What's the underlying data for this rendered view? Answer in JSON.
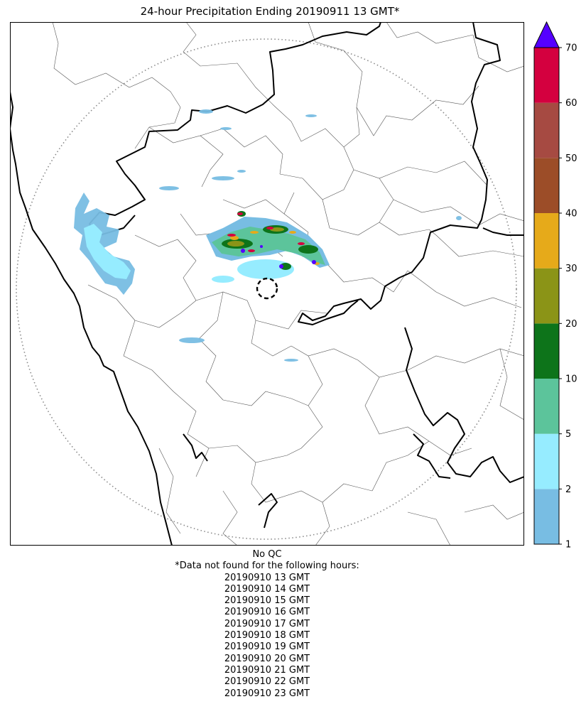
{
  "title": "24-hour Precipitation Ending 20190911 13 GMT*",
  "colorbar": {
    "tick_labels": [
      "1",
      "2",
      "5",
      "10",
      "20",
      "30",
      "40",
      "50",
      "60",
      "70"
    ],
    "bins": [
      {
        "from": 1,
        "to": 2,
        "color": "#78bde3"
      },
      {
        "from": 2,
        "to": 5,
        "color": "#96ecff"
      },
      {
        "from": 5,
        "to": 10,
        "color": "#5cc49b"
      },
      {
        "from": 10,
        "to": 20,
        "color": "#0d741a"
      },
      {
        "from": 20,
        "to": 30,
        "color": "#8b9417"
      },
      {
        "from": 30,
        "to": 40,
        "color": "#e6aa1a"
      },
      {
        "from": 40,
        "to": 50,
        "color": "#9c4d28"
      },
      {
        "from": 50,
        "to": 60,
        "color": "#a64a42"
      },
      {
        "from": 60,
        "to": 70,
        "color": "#d4003f"
      }
    ],
    "overflow_color": "#5500ff"
  },
  "notes": {
    "qc": "No QC",
    "missing_header": "*Data not found for the following hours:",
    "missing_hours": [
      "20190910 13 GMT",
      "20190910 14 GMT",
      "20190910 15 GMT",
      "20190910 16 GMT",
      "20190910 17 GMT",
      "20190910 18 GMT",
      "20190910 19 GMT",
      "20190910 20 GMT",
      "20190910 21 GMT",
      "20190910 22 GMT",
      "20190910 23 GMT"
    ]
  }
}
